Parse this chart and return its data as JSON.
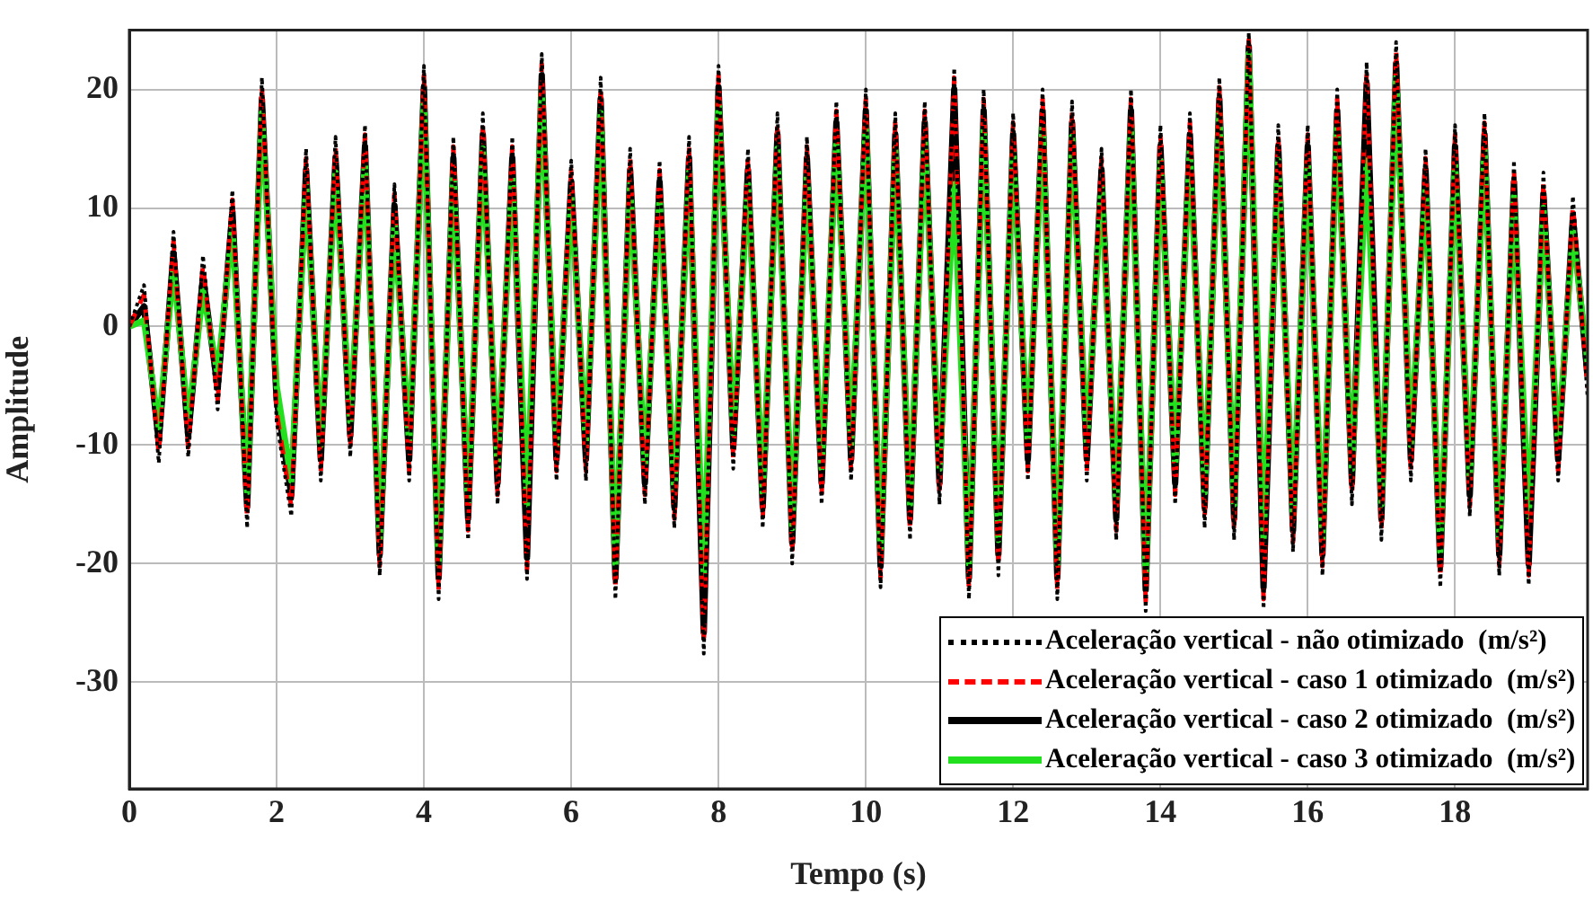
{
  "chart_data": {
    "type": "line",
    "xlabel": "Tempo (s)",
    "ylabel": "Amplitude",
    "xlim": [
      0,
      19.8
    ],
    "xticks": [
      0,
      2,
      4,
      6,
      8,
      10,
      12,
      14,
      16,
      18
    ],
    "ylim": [
      -39,
      25
    ],
    "yticks": [
      -30,
      -20,
      -10,
      0,
      10,
      20
    ],
    "grid": true,
    "legend": "bottom right",
    "marker": "none",
    "x": [
      0,
      0.2,
      0.4,
      0.6,
      0.8,
      1,
      1.2,
      1.4,
      1.6,
      1.8,
      2,
      2.2,
      2.4,
      2.6,
      2.8,
      3,
      3.2,
      3.4,
      3.6,
      3.8,
      4,
      4.2,
      4.4,
      4.6,
      4.8,
      5,
      5.2,
      5.4,
      5.6,
      5.8,
      6,
      6.2,
      6.4,
      6.6,
      6.8,
      7,
      7.2,
      7.4,
      7.6,
      7.8,
      8,
      8.2,
      8.4,
      8.6,
      8.8,
      9,
      9.2,
      9.4,
      9.6,
      9.8,
      10,
      10.2,
      10.4,
      10.6,
      10.8,
      11,
      11.2,
      11.4,
      11.6,
      11.8,
      12,
      12.2,
      12.4,
      12.6,
      12.8,
      13,
      13.2,
      13.4,
      13.6,
      13.8,
      14,
      14.2,
      14.4,
      14.6,
      14.8,
      15,
      15.2,
      15.4,
      15.6,
      15.8,
      16,
      16.2,
      16.4,
      16.6,
      16.8,
      17,
      17.2,
      17.4,
      17.6,
      17.8,
      18,
      18.2,
      18.4,
      18.6,
      18.8,
      19,
      19.2,
      19.4,
      19.6,
      19.8
    ],
    "series": [
      {
        "name": "Aceleração vertical - não otimizado  (m/s²)",
        "color": "#000000",
        "line_style": "dotted",
        "values": [
          0,
          3.5,
          -11.5,
          8,
          -11,
          6,
          -7,
          11.5,
          -17,
          21,
          -8,
          -16,
          15,
          -13,
          16,
          -11,
          17,
          -21,
          12,
          -13,
          22,
          -23,
          16,
          -18,
          18,
          -15,
          16,
          -21.3,
          23,
          -13,
          14,
          -13,
          21,
          -23,
          15,
          -15,
          14,
          -17,
          16,
          -27.6,
          22,
          -12,
          15,
          -17,
          18,
          -20,
          16,
          -15,
          19,
          -13,
          20,
          -22,
          18,
          -18,
          19,
          -15,
          21.8,
          -23,
          20,
          -21,
          18,
          -13,
          20,
          -23,
          19,
          -13,
          15,
          -18,
          20,
          -24,
          17,
          -15,
          18,
          -17,
          21,
          -18,
          24.8,
          -23.8,
          17,
          -19,
          17,
          -21,
          20,
          -15,
          22.3,
          -18,
          24,
          -13,
          15,
          -22,
          17,
          -16,
          18,
          -21,
          14,
          -21.8,
          13,
          -13,
          11,
          -6
        ]
      },
      {
        "name": "Aceleração vertical - caso 1 otimizado  (m/s²)",
        "color": "#ff0000",
        "line_style": "dashed",
        "values": [
          0,
          2.7,
          -10.7,
          7.2,
          -10.2,
          5.2,
          -6.2,
          10.7,
          -16.2,
          20.2,
          -7.2,
          -15.2,
          14.2,
          -12.2,
          15.2,
          -10.2,
          16.2,
          -20.2,
          11.2,
          -12.2,
          21.2,
          -22.2,
          15.2,
          -17.2,
          17.2,
          -14.2,
          15.2,
          -20.5,
          22.2,
          -12.2,
          13.2,
          -12.2,
          20.2,
          -22.2,
          14.2,
          -14.2,
          13.2,
          -16.2,
          15.2,
          -26.8,
          21.2,
          -11.2,
          14.2,
          -16.2,
          17.2,
          -19.2,
          15.2,
          -14.2,
          18.2,
          -12.2,
          19.2,
          -21.2,
          17.2,
          -17.2,
          18.2,
          -14.2,
          21,
          -22.2,
          19.2,
          -20.2,
          17.2,
          -12.2,
          19.2,
          -22.2,
          18.2,
          -12.2,
          14.2,
          -17.2,
          19.2,
          -23.2,
          16.2,
          -14.2,
          17.2,
          -16.2,
          20.2,
          -17.2,
          24.2,
          -23,
          16.2,
          -18.2,
          16.2,
          -20.2,
          19.2,
          -14.2,
          21.5,
          -17.2,
          23.2,
          -12.2,
          14.2,
          -21.2,
          16.2,
          -15.2,
          17.2,
          -20.2,
          13.2,
          -21,
          12.2,
          -12.2,
          10.2,
          -5.2
        ]
      },
      {
        "name": "Aceleração vertical - caso 2 otimizado  (m/s²)",
        "color": "#000000",
        "line_style": "solid",
        "values": [
          0,
          1.7,
          -9.7,
          6.2,
          -9.2,
          4.2,
          -5.2,
          9.7,
          -15.2,
          19.2,
          -6.2,
          -14.2,
          13.2,
          -11.2,
          14.2,
          -9.2,
          15.2,
          -19.2,
          10.2,
          -11.2,
          20.2,
          -21.2,
          14.2,
          -16.2,
          16.2,
          -13.2,
          14.2,
          -19.5,
          21.2,
          -11.2,
          12.2,
          -11.2,
          19.2,
          -21.2,
          13.2,
          -13.2,
          12.2,
          -15.2,
          14.2,
          -25.8,
          20.2,
          -10.2,
          13.2,
          -15.2,
          16.2,
          -18.2,
          14.2,
          -13.2,
          17.2,
          -11.2,
          18.2,
          -20.2,
          16.2,
          -16.2,
          17.2,
          -13.2,
          20,
          -21.2,
          18.2,
          -19.2,
          16.2,
          -11.2,
          18.2,
          -21.2,
          17.2,
          -11.2,
          13.2,
          -16.2,
          18.2,
          -22.2,
          15.2,
          -13.2,
          16.2,
          -15.2,
          19.2,
          -16.2,
          23.6,
          -22,
          15.2,
          -17.2,
          15.2,
          -19.2,
          18.2,
          -13.2,
          20.5,
          -16.2,
          22.2,
          -11.2,
          13.2,
          -20.2,
          15.2,
          -14.2,
          16.2,
          -19.2,
          12.2,
          -20,
          11.2,
          -11.2,
          9.2,
          -4.2
        ]
      },
      {
        "name": "Aceleração vertical - caso 3 otimizado  (m/s²)",
        "color": "#22e01e",
        "line_style": "solid",
        "values": [
          0,
          0.5,
          -8.5,
          5,
          -8,
          3,
          -4,
          8.5,
          -14,
          18,
          -5,
          -13,
          12,
          -10,
          13,
          -8,
          14,
          -18,
          9,
          -10,
          19,
          -20,
          13,
          -15,
          15,
          -12,
          13,
          -15,
          20,
          -10,
          11,
          -10,
          18,
          -20,
          12,
          -12,
          11,
          -14,
          13,
          -21,
          19,
          -9,
          12,
          -14,
          15,
          -17,
          13,
          -12,
          16,
          -10,
          17,
          -19,
          15,
          -15,
          16,
          -12,
          12,
          -20,
          17,
          -18,
          15,
          -10,
          17,
          -20,
          16,
          -10,
          12,
          -15,
          17,
          -21,
          14,
          -12,
          15,
          -14,
          18,
          -15,
          23,
          -18,
          14,
          -16,
          14,
          -18,
          17,
          -12,
          14,
          -15,
          21,
          -10,
          12,
          -19,
          14,
          -13,
          15,
          -18,
          11,
          -16,
          10,
          -10,
          8,
          -3
        ]
      }
    ]
  }
}
